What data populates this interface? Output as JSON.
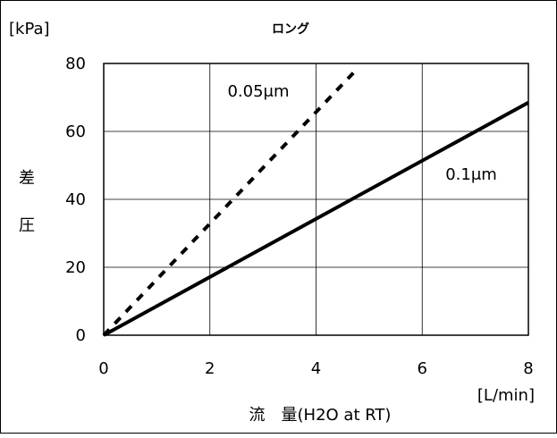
{
  "chart_data": {
    "type": "line",
    "title": "ロング",
    "xlabel": "流　量(H2O at RT)",
    "xunit": "[L/min]",
    "ylabel": [
      "差",
      "圧"
    ],
    "yunit": "[kPa]",
    "xlim": [
      0,
      8
    ],
    "ylim": [
      0,
      80
    ],
    "xticks": [
      0,
      2,
      4,
      6,
      8
    ],
    "yticks": [
      0,
      20,
      40,
      60,
      80
    ],
    "grid": true,
    "legend": "none",
    "series": [
      {
        "name": "0.05μm",
        "style": "dotted",
        "color": "#000000",
        "x": [
          0,
          4.75
        ],
        "y": [
          0,
          78
        ]
      },
      {
        "name": "0.1μm",
        "style": "solid",
        "color": "#000000",
        "x": [
          0,
          8
        ],
        "y": [
          0,
          68.5
        ]
      }
    ]
  }
}
